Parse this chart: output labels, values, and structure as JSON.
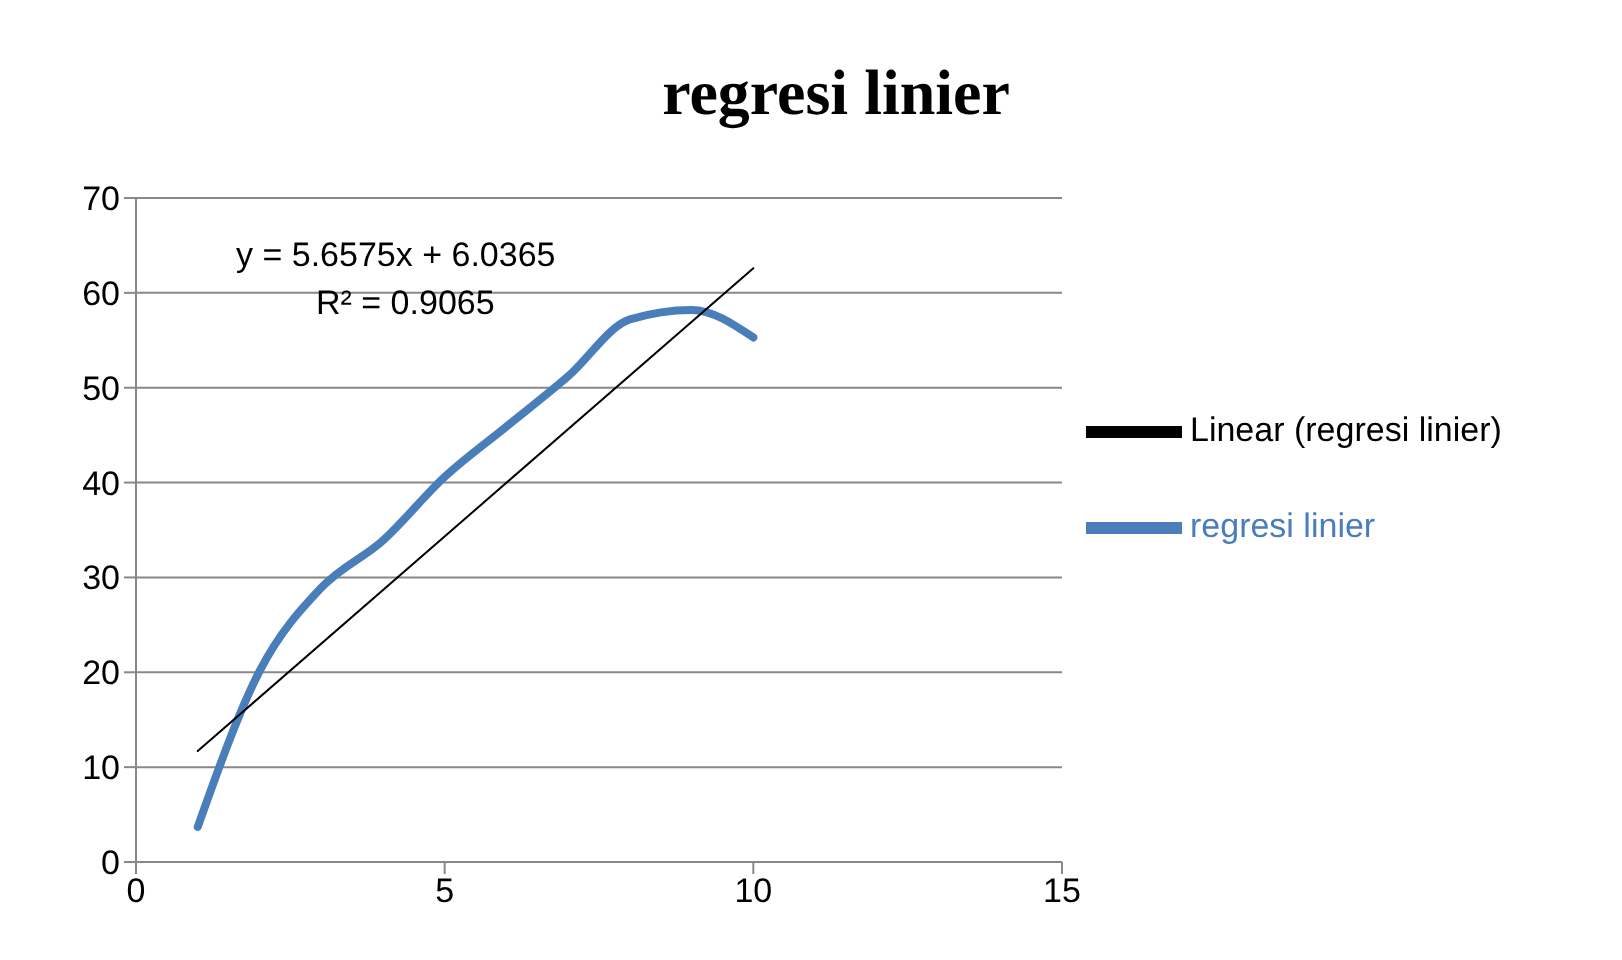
{
  "chart_data": {
    "type": "line",
    "title": "regresi linier",
    "xlim": [
      0,
      15
    ],
    "xticks": [
      0,
      5,
      10,
      15
    ],
    "ylim": [
      0,
      70
    ],
    "yticks": [
      0,
      10,
      20,
      30,
      40,
      50,
      60,
      70
    ],
    "grid": "y",
    "legend": "right",
    "marker": "none",
    "line_style": "solid",
    "annotations": [
      "y = 5.6575x + 6.0365",
      "R² = 0.9065"
    ],
    "series": [
      {
        "name": "regresi linier",
        "color": "#4a7ebb",
        "x": [
          1,
          2,
          3,
          4,
          5,
          6,
          7,
          8,
          9,
          10
        ],
        "values": [
          3.7,
          20.1,
          28.9,
          33.9,
          40.6,
          45.9,
          51.2,
          57.2,
          58.2,
          55.3
        ]
      },
      {
        "name": "Linear (regresi linier)",
        "color": "#000000",
        "type": "line",
        "x": [
          1,
          10
        ],
        "values": [
          11.7,
          62.6
        ]
      }
    ]
  }
}
